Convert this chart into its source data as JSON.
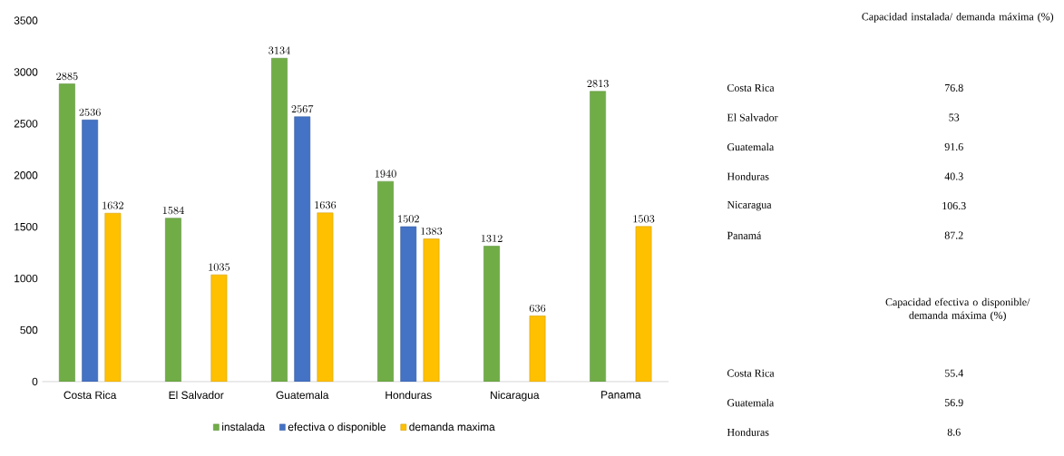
{
  "chart_data": [
    {
      "type": "bar",
      "categories": [
        "Costa Rica",
        "El Salvador",
        "Guatemala",
        "Honduras",
        "Nicaragua",
        "Panama"
      ],
      "series": [
        {
          "name": "instalada",
          "color": "#70ad47",
          "values": [
            2885,
            1584,
            3134,
            1940,
            1312,
            2813
          ]
        },
        {
          "name": "efectiva o disponible",
          "color": "#4472c4",
          "values": [
            2536,
            null,
            2567,
            1502,
            null,
            null
          ]
        },
        {
          "name": "demanda maxima",
          "color": "#ffc000",
          "values": [
            1632,
            1035,
            1636,
            1383,
            636,
            1503
          ]
        }
      ],
      "ylim": [
        0,
        3500
      ],
      "yticks": [
        0,
        500,
        1000,
        1500,
        2000,
        2500,
        3000,
        3500
      ],
      "data_labels": true,
      "legend": "bottom",
      "grid": false
    },
    {
      "type": "other",
      "title": "Capacidad instalada/ demanda máxima (%)",
      "annotations": [
        "Costa Rica",
        "76.8",
        "El Salvador",
        "53",
        "Guatemala",
        "91.6",
        "Honduras",
        "40.3",
        "Nicaragua",
        "106.3",
        "Panamá",
        "87.2"
      ]
    },
    {
      "type": "other",
      "title": "Capacidad efectiva o disponible/ demanda máxima (%)",
      "annotations": [
        "Costa Rica",
        "55.4",
        "Guatemala",
        "56.9",
        "Honduras",
        "8.6"
      ]
    }
  ]
}
